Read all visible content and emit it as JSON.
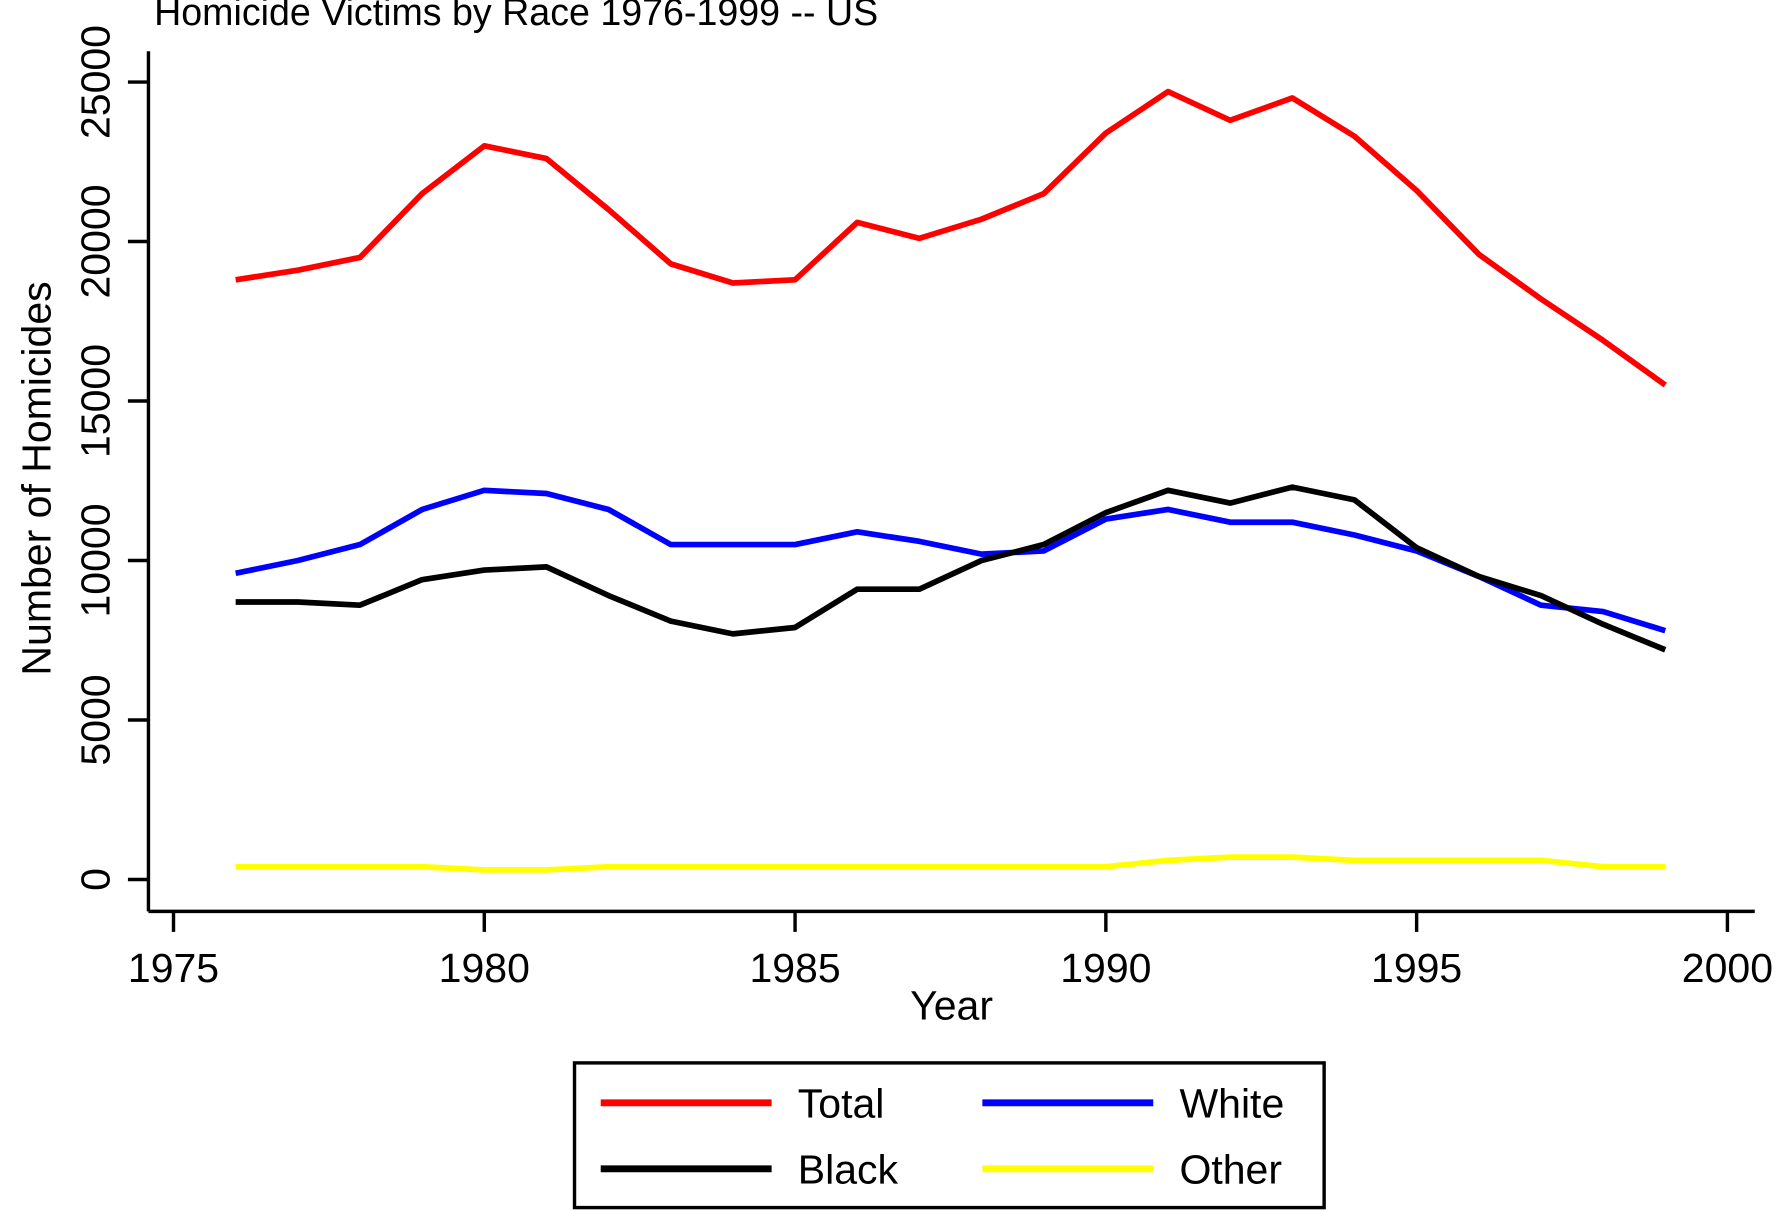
{
  "chart_data": {
    "type": "line",
    "title": "Homicide Victims by Race 1976-1999 -- US",
    "x_label": "Year",
    "y_label": "Number of Homicides",
    "x": [
      1976,
      1977,
      1978,
      1979,
      1980,
      1981,
      1982,
      1983,
      1984,
      1985,
      1986,
      1987,
      1988,
      1989,
      1990,
      1991,
      1992,
      1993,
      1994,
      1995,
      1996,
      1997,
      1998,
      1999
    ],
    "series": [
      {
        "name": "Total",
        "color": "#ff0000",
        "values": [
          18800,
          19100,
          19500,
          21500,
          23000,
          22600,
          21000,
          19300,
          18700,
          18800,
          20600,
          20100,
          20700,
          21500,
          23400,
          24700,
          23800,
          24500,
          23300,
          21600,
          19600,
          18200,
          16900,
          15500
        ]
      },
      {
        "name": "White",
        "color": "#0000ff",
        "values": [
          9600,
          10000,
          10500,
          11600,
          12200,
          12100,
          11600,
          10500,
          10500,
          10500,
          10900,
          10600,
          10200,
          10300,
          11300,
          11600,
          11200,
          11200,
          10800,
          10300,
          9500,
          8600,
          8400,
          7800
        ]
      },
      {
        "name": "Black",
        "color": "#000000",
        "values": [
          8700,
          8700,
          8600,
          9400,
          9700,
          9800,
          8900,
          8100,
          7700,
          7900,
          9100,
          9100,
          10000,
          10500,
          11500,
          12200,
          11800,
          12300,
          11900,
          10400,
          9500,
          8900,
          8000,
          7200
        ]
      },
      {
        "name": "Other",
        "color": "#ffff00",
        "values": [
          400,
          400,
          400,
          400,
          300,
          300,
          400,
          400,
          400,
          400,
          400,
          400,
          400,
          400,
          400,
          600,
          700,
          700,
          600,
          600,
          600,
          600,
          400,
          400
        ]
      }
    ],
    "xlim": [
      1975,
      2000
    ],
    "xticks": [
      1975,
      1980,
      1985,
      1990,
      1995,
      2000
    ],
    "ylim": [
      0,
      25000
    ],
    "yticks": [
      0,
      5000,
      10000,
      15000,
      20000,
      25000
    ],
    "legend": "bottom"
  }
}
